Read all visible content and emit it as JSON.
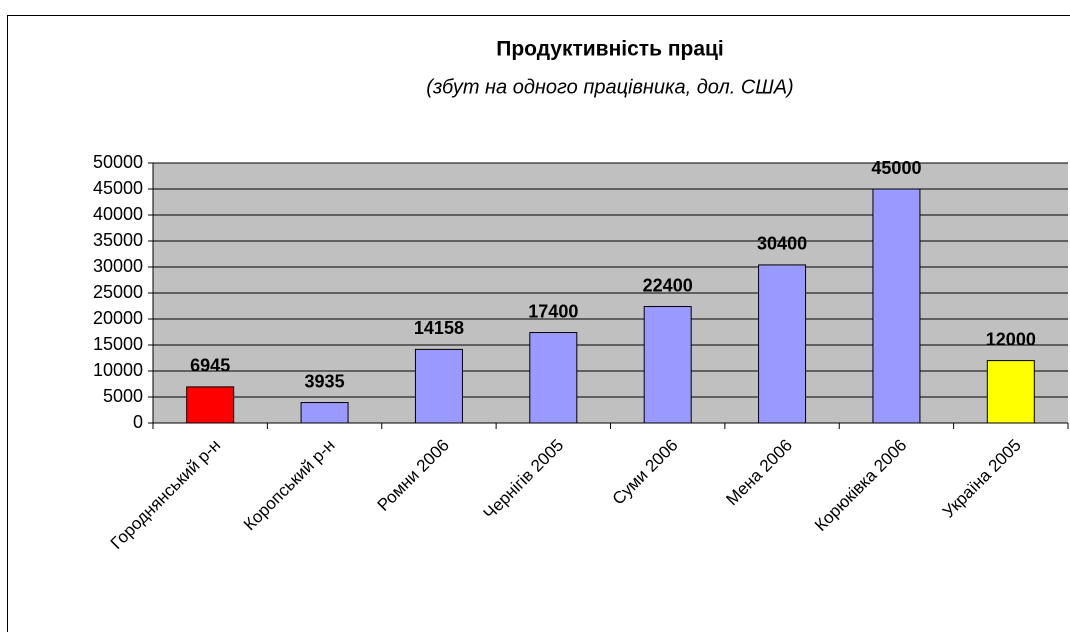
{
  "chart_data": {
    "type": "bar",
    "title": "Продуктивність праці",
    "subtitle": "(збут на одного працівника, дол. США)",
    "categories": [
      "Городнянський р-н",
      "Коропський р-н",
      "Ромни 2006",
      "Чернігів 2005",
      "Суми 2006",
      "Мена 2006",
      "Корюківка 2006",
      "Україна 2005"
    ],
    "values": [
      6945,
      3935,
      14158,
      17400,
      22400,
      30400,
      45000,
      12000
    ],
    "colors": [
      "#ff0000",
      "#9999ff",
      "#9999ff",
      "#9999ff",
      "#9999ff",
      "#9999ff",
      "#9999ff",
      "#ffff00"
    ],
    "ylim": [
      0,
      50000
    ],
    "yticks": [
      0,
      5000,
      10000,
      15000,
      20000,
      25000,
      30000,
      35000,
      40000,
      45000,
      50000
    ],
    "grid": true
  }
}
